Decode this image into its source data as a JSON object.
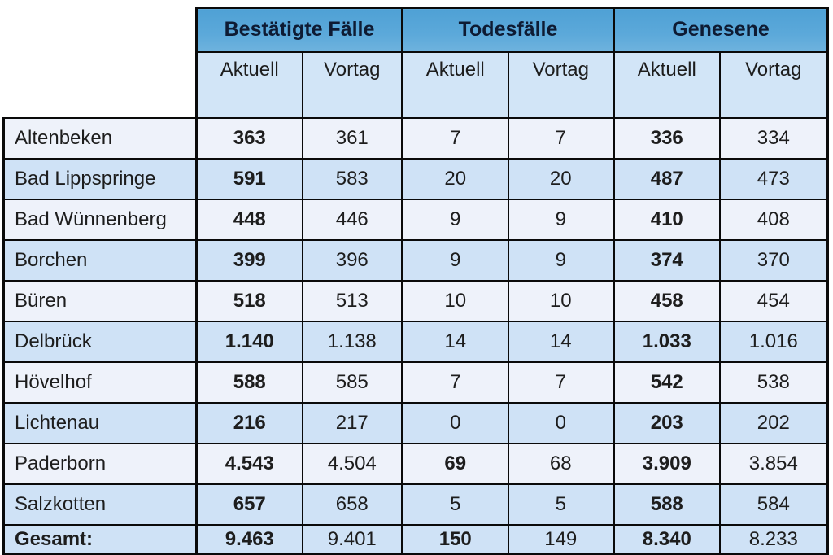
{
  "table": {
    "groups": [
      {
        "label": "Bestätigte Fälle"
      },
      {
        "label": "Todesfälle"
      },
      {
        "label": "Genesene"
      }
    ],
    "subheaders": [
      "Aktuell",
      "Vortag"
    ],
    "rows": [
      {
        "name": "Altenbeken",
        "values": [
          "363",
          "361",
          "7",
          "7",
          "336",
          "334"
        ],
        "bold": [
          true,
          false,
          false,
          false,
          true,
          false
        ],
        "total": false
      },
      {
        "name": "Bad Lippspringe",
        "values": [
          "591",
          "583",
          "20",
          "20",
          "487",
          "473"
        ],
        "bold": [
          true,
          false,
          false,
          false,
          true,
          false
        ],
        "total": false
      },
      {
        "name": "Bad Wünnenberg",
        "values": [
          "448",
          "446",
          "9",
          "9",
          "410",
          "408"
        ],
        "bold": [
          true,
          false,
          false,
          false,
          true,
          false
        ],
        "total": false
      },
      {
        "name": "Borchen",
        "values": [
          "399",
          "396",
          "9",
          "9",
          "374",
          "370"
        ],
        "bold": [
          true,
          false,
          false,
          false,
          true,
          false
        ],
        "total": false
      },
      {
        "name": "Büren",
        "values": [
          "518",
          "513",
          "10",
          "10",
          "458",
          "454"
        ],
        "bold": [
          true,
          false,
          false,
          false,
          true,
          false
        ],
        "total": false
      },
      {
        "name": "Delbrück",
        "values": [
          "1.140",
          "1.138",
          "14",
          "14",
          "1.033",
          "1.016"
        ],
        "bold": [
          true,
          false,
          false,
          false,
          true,
          false
        ],
        "total": false
      },
      {
        "name": "Hövelhof",
        "values": [
          "588",
          "585",
          "7",
          "7",
          "542",
          "538"
        ],
        "bold": [
          true,
          false,
          false,
          false,
          true,
          false
        ],
        "total": false
      },
      {
        "name": "Lichtenau",
        "values": [
          "216",
          "217",
          "0",
          "0",
          "203",
          "202"
        ],
        "bold": [
          true,
          false,
          false,
          false,
          true,
          false
        ],
        "total": false
      },
      {
        "name": "Paderborn",
        "values": [
          "4.543",
          "4.504",
          "69",
          "68",
          "3.909",
          "3.854"
        ],
        "bold": [
          true,
          false,
          true,
          false,
          true,
          false
        ],
        "total": false
      },
      {
        "name": "Salzkotten",
        "values": [
          "657",
          "658",
          "5",
          "5",
          "588",
          "584"
        ],
        "bold": [
          true,
          false,
          false,
          false,
          true,
          false
        ],
        "total": false
      },
      {
        "name": "Gesamt:",
        "values": [
          "9.463",
          "9.401",
          "150",
          "149",
          "8.340",
          "8.233"
        ],
        "bold": [
          true,
          false,
          true,
          false,
          true,
          false
        ],
        "total": true
      }
    ]
  },
  "colors": {
    "header_bg": "#58a7d8",
    "subheader_bg": "#d2e5f7",
    "row_light": "#eef2fa",
    "row_blue": "#cfe2f6",
    "header_text": "#0e1b33",
    "border": "#0a0a0a"
  },
  "chart_data": {
    "type": "table",
    "title": "",
    "column_groups": [
      "Bestätigte Fälle",
      "Todesfälle",
      "Genesene"
    ],
    "columns": [
      "Bestätigte Fälle Aktuell",
      "Bestätigte Fälle Vortag",
      "Todesfälle Aktuell",
      "Todesfälle Vortag",
      "Genesene Aktuell",
      "Genesene Vortag"
    ],
    "row_labels": [
      "Altenbeken",
      "Bad Lippspringe",
      "Bad Wünnenberg",
      "Borchen",
      "Büren",
      "Delbrück",
      "Hövelhof",
      "Lichtenau",
      "Paderborn",
      "Salzkotten",
      "Gesamt:"
    ],
    "rows": [
      [
        363,
        361,
        7,
        7,
        336,
        334
      ],
      [
        591,
        583,
        20,
        20,
        487,
        473
      ],
      [
        448,
        446,
        9,
        9,
        410,
        408
      ],
      [
        399,
        396,
        9,
        9,
        374,
        370
      ],
      [
        518,
        513,
        10,
        10,
        458,
        454
      ],
      [
        1140,
        1138,
        14,
        14,
        1033,
        1016
      ],
      [
        588,
        585,
        7,
        7,
        542,
        538
      ],
      [
        216,
        217,
        0,
        0,
        203,
        202
      ],
      [
        4543,
        4504,
        69,
        68,
        3909,
        3854
      ],
      [
        657,
        658,
        5,
        5,
        588,
        584
      ],
      [
        9463,
        9401,
        150,
        149,
        8340,
        8233
      ]
    ]
  }
}
